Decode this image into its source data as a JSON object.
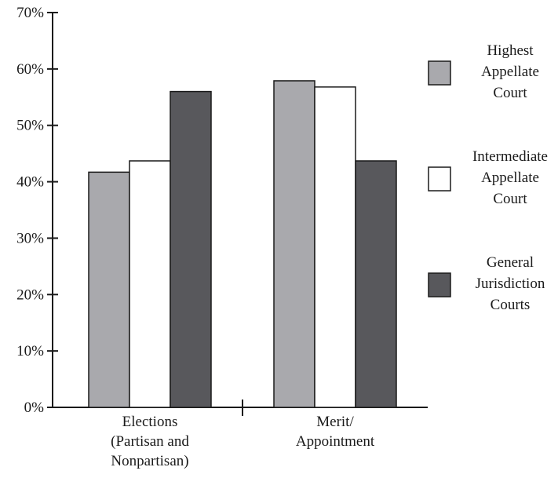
{
  "chart_data": {
    "type": "bar",
    "categories": [
      [
        "Elections",
        "(Partisan and",
        "Nonpartisan)"
      ],
      [
        "Merit/",
        "Appointment"
      ]
    ],
    "series": [
      {
        "name": [
          "Highest",
          "Appellate",
          "Court"
        ],
        "values": [
          41.7,
          57.9
        ],
        "color": "#a9a9ad"
      },
      {
        "name": [
          "Intermediate",
          "Appellate",
          "Court"
        ],
        "values": [
          43.7,
          56.8
        ],
        "color": "#ffffff"
      },
      {
        "name": [
          "General",
          "Jurisdiction",
          "Courts"
        ],
        "values": [
          56.0,
          43.7
        ],
        "color": "#58585c"
      }
    ],
    "yticks": [
      "0%",
      "10%",
      "20%",
      "30%",
      "40%",
      "50%",
      "60%",
      "70%"
    ],
    "ylim": [
      0,
      70
    ],
    "legend_position": "right",
    "grid": false
  }
}
